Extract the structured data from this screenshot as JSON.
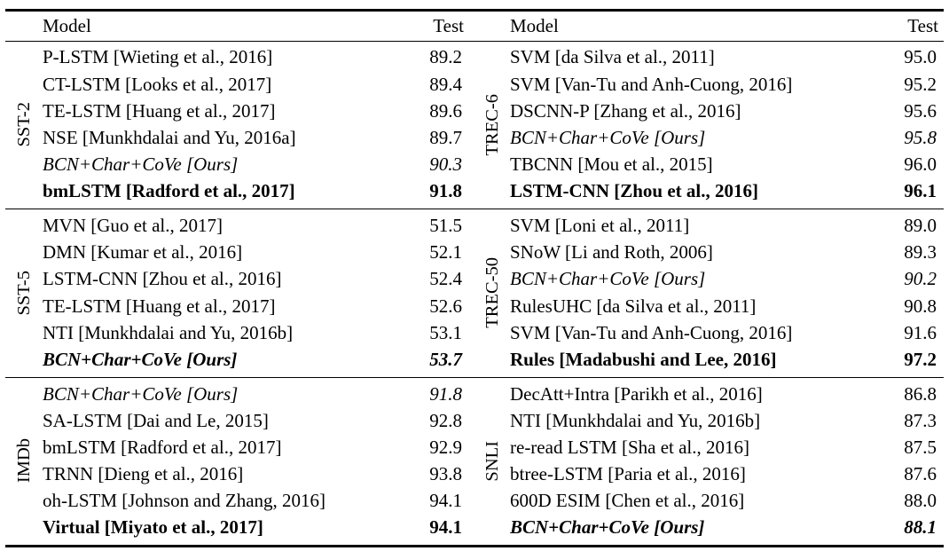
{
  "header": {
    "model": "Model",
    "test": "Test"
  },
  "bands": [
    {
      "left": {
        "group": "SST-2",
        "rows": [
          {
            "model": "P-LSTM [Wieting et al., 2016]",
            "test": "89.2",
            "style": "normal"
          },
          {
            "model": "CT-LSTM [Looks et al., 2017]",
            "test": "89.4",
            "style": "normal"
          },
          {
            "model": "TE-LSTM [Huang et al., 2017]",
            "test": "89.6",
            "style": "normal"
          },
          {
            "model": "NSE [Munkhdalai and Yu, 2016a]",
            "test": "89.7",
            "style": "normal"
          },
          {
            "model": "BCN+Char+CoVe [Ours]",
            "test": "90.3",
            "style": "italic"
          },
          {
            "model": "bmLSTM [Radford et al., 2017]",
            "test": "91.8",
            "style": "bold"
          }
        ]
      },
      "right": {
        "group": "TREC-6",
        "rows": [
          {
            "model": "SVM [da Silva et al., 2011]",
            "test": "95.0",
            "style": "normal"
          },
          {
            "model": "SVM [Van-Tu and Anh-Cuong, 2016]",
            "test": "95.2",
            "style": "normal"
          },
          {
            "model": "DSCNN-P [Zhang et al., 2016]",
            "test": "95.6",
            "style": "normal"
          },
          {
            "model": "BCN+Char+CoVe [Ours]",
            "test": "95.8",
            "style": "italic"
          },
          {
            "model": "TBCNN [Mou et al., 2015]",
            "test": "96.0",
            "style": "normal"
          },
          {
            "model": "LSTM-CNN [Zhou et al., 2016]",
            "test": "96.1",
            "style": "bold"
          }
        ]
      }
    },
    {
      "left": {
        "group": "SST-5",
        "rows": [
          {
            "model": "MVN [Guo et al., 2017]",
            "test": "51.5",
            "style": "normal"
          },
          {
            "model": "DMN [Kumar et al., 2016]",
            "test": "52.1",
            "style": "normal"
          },
          {
            "model": "LSTM-CNN [Zhou et al., 2016]",
            "test": "52.4",
            "style": "normal"
          },
          {
            "model": "TE-LSTM [Huang et al., 2017]",
            "test": "52.6",
            "style": "normal"
          },
          {
            "model": "NTI [Munkhdalai and Yu, 2016b]",
            "test": "53.1",
            "style": "normal"
          },
          {
            "model": "BCN+Char+CoVe [Ours]",
            "test": "53.7",
            "style": "bolditalic"
          }
        ]
      },
      "right": {
        "group": "TREC-50",
        "rows": [
          {
            "model": "SVM [Loni et al., 2011]",
            "test": "89.0",
            "style": "normal"
          },
          {
            "model": "SNoW [Li and Roth, 2006]",
            "test": "89.3",
            "style": "normal"
          },
          {
            "model": "BCN+Char+CoVe [Ours]",
            "test": "90.2",
            "style": "italic"
          },
          {
            "model": "RulesUHC [da Silva et al., 2011]",
            "test": "90.8",
            "style": "normal"
          },
          {
            "model": "SVM [Van-Tu and Anh-Cuong, 2016]",
            "test": "91.6",
            "style": "normal"
          },
          {
            "model": "Rules [Madabushi and Lee, 2016]",
            "test": "97.2",
            "style": "bold"
          }
        ]
      }
    },
    {
      "left": {
        "group": "IMDb",
        "rows": [
          {
            "model": "BCN+Char+CoVe [Ours]",
            "test": "91.8",
            "style": "italic"
          },
          {
            "model": "SA-LSTM [Dai and Le, 2015]",
            "test": "92.8",
            "style": "normal"
          },
          {
            "model": "bmLSTM [Radford et al., 2017]",
            "test": "92.9",
            "style": "normal"
          },
          {
            "model": "TRNN [Dieng et al., 2016]",
            "test": "93.8",
            "style": "normal"
          },
          {
            "model": "oh-LSTM [Johnson and Zhang, 2016]",
            "test": "94.1",
            "style": "normal"
          },
          {
            "model": "Virtual [Miyato et al., 2017]",
            "test": "94.1",
            "style": "bold"
          }
        ]
      },
      "right": {
        "group": "SNLI",
        "rows": [
          {
            "model": "DecAtt+Intra [Parikh et al., 2016]",
            "test": "86.8",
            "style": "normal"
          },
          {
            "model": "NTI [Munkhdalai and Yu, 2016b]",
            "test": "87.3",
            "style": "normal"
          },
          {
            "model": "re-read LSTM [Sha et al., 2016]",
            "test": "87.5",
            "style": "normal"
          },
          {
            "model": "btree-LSTM [Paria et al., 2016]",
            "test": "87.6",
            "style": "normal"
          },
          {
            "model": "600D ESIM [Chen et al., 2016]",
            "test": "88.0",
            "style": "normal"
          },
          {
            "model": "BCN+Char+CoVe [Ours]",
            "test": "88.1",
            "style": "bolditalic"
          }
        ]
      }
    }
  ]
}
